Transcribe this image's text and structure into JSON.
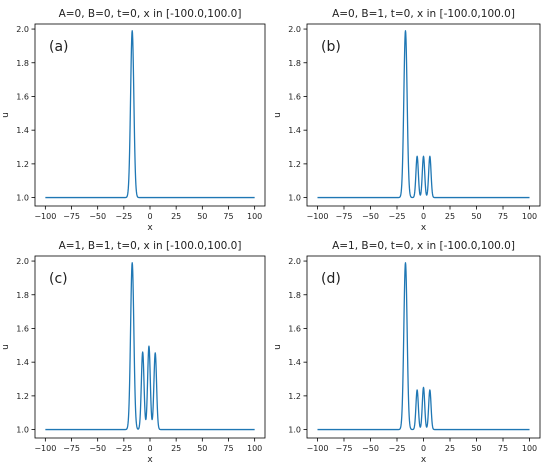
{
  "line_color": "#1f77b4",
  "chart_data": [
    {
      "type": "line",
      "panel_label": "(a)",
      "title": "A=0, B=0, t=0, x in [-100.0,100.0]",
      "xlabel": "x",
      "ylabel": "u",
      "xlim": [
        -100,
        100
      ],
      "ylim": [
        0.95,
        2.03
      ],
      "xticks": [
        -100,
        -75,
        -50,
        -25,
        0,
        25,
        50,
        75,
        100
      ],
      "yticks": [
        1.0,
        1.2,
        1.4,
        1.6,
        1.8,
        2.0
      ],
      "ytick_labels": [
        "1.0",
        "1.2",
        "1.4",
        "1.6",
        "1.8",
        "2.0"
      ],
      "baseline": 1.0,
      "peaks": [
        {
          "x": -17,
          "height": 0.99,
          "width": 2.2
        }
      ],
      "series": [
        {
          "x_range": [
            -100,
            100
          ]
        }
      ]
    },
    {
      "type": "line",
      "panel_label": "(b)",
      "title": "A=0, B=1, t=0, x in [-100.0,100.0]",
      "xlabel": "x",
      "ylabel": "u",
      "xlim": [
        -100,
        100
      ],
      "ylim": [
        0.95,
        2.03
      ],
      "xticks": [
        -100,
        -75,
        -50,
        -25,
        0,
        25,
        50,
        75,
        100
      ],
      "yticks": [
        1.0,
        1.2,
        1.4,
        1.6,
        1.8,
        2.0
      ],
      "ytick_labels": [
        "1.0",
        "1.2",
        "1.4",
        "1.6",
        "1.8",
        "2.0"
      ],
      "baseline": 1.0,
      "peaks": [
        {
          "x": -17,
          "height": 0.99,
          "width": 2.2
        },
        {
          "x": -6,
          "height": 0.245,
          "width": 1.6
        },
        {
          "x": 0,
          "height": 0.245,
          "width": 1.6
        },
        {
          "x": 6,
          "height": 0.245,
          "width": 1.6
        }
      ],
      "series": [
        {
          "x_range": [
            -100,
            100
          ]
        }
      ]
    },
    {
      "type": "line",
      "panel_label": "(c)",
      "title": "A=1, B=1, t=0, x in [-100.0,100.0]",
      "xlabel": "x",
      "ylabel": "u",
      "xlim": [
        -100,
        100
      ],
      "ylim": [
        0.95,
        2.03
      ],
      "xticks": [
        -100,
        -75,
        -50,
        -25,
        0,
        25,
        50,
        75,
        100
      ],
      "yticks": [
        1.0,
        1.2,
        1.4,
        1.6,
        1.8,
        2.0
      ],
      "ytick_labels": [
        "1.0",
        "1.2",
        "1.4",
        "1.6",
        "1.8",
        "2.0"
      ],
      "baseline": 1.0,
      "peaks": [
        {
          "x": -17,
          "height": 0.99,
          "width": 2.2
        },
        {
          "x": -7,
          "height": 0.46,
          "width": 1.8
        },
        {
          "x": -1,
          "height": 0.495,
          "width": 1.8
        },
        {
          "x": 5,
          "height": 0.455,
          "width": 1.8
        }
      ],
      "series": [
        {
          "x_range": [
            -100,
            100
          ]
        }
      ]
    },
    {
      "type": "line",
      "panel_label": "(d)",
      "title": "A=1, B=0, t=0, x in [-100.0,100.0]",
      "xlabel": "x",
      "ylabel": "u",
      "xlim": [
        -100,
        100
      ],
      "ylim": [
        0.95,
        2.03
      ],
      "xticks": [
        -100,
        -75,
        -50,
        -25,
        0,
        25,
        50,
        75,
        100
      ],
      "yticks": [
        1.0,
        1.2,
        1.4,
        1.6,
        1.8,
        2.0
      ],
      "ytick_labels": [
        "1.0",
        "1.2",
        "1.4",
        "1.6",
        "1.8",
        "2.0"
      ],
      "baseline": 1.0,
      "peaks": [
        {
          "x": -17,
          "height": 0.99,
          "width": 2.2
        },
        {
          "x": -6,
          "height": 0.235,
          "width": 1.6
        },
        {
          "x": 0,
          "height": 0.25,
          "width": 1.6
        },
        {
          "x": 6,
          "height": 0.235,
          "width": 1.6
        }
      ],
      "series": [
        {
          "x_range": [
            -100,
            100
          ]
        }
      ]
    }
  ]
}
